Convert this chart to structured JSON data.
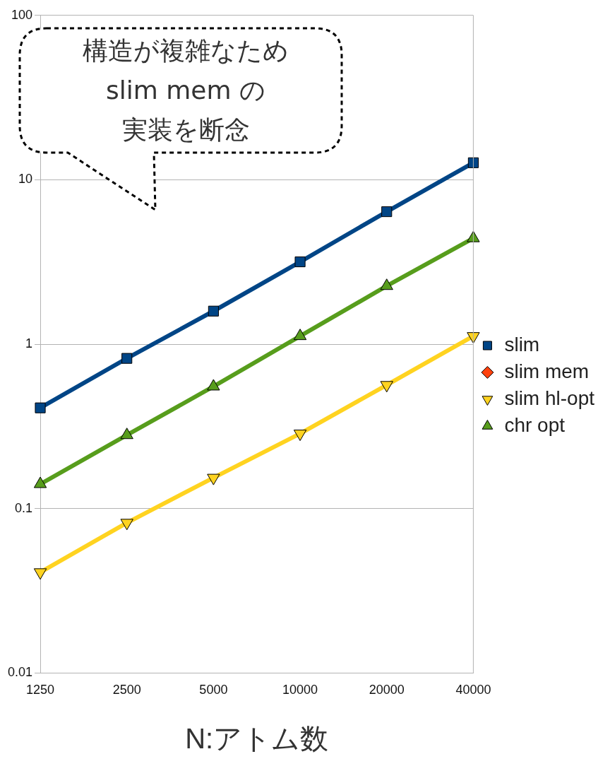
{
  "chart_data": {
    "type": "line",
    "xlabel": "N:アトム数",
    "categories": [
      "1250",
      "2500",
      "5000",
      "10000",
      "20000",
      "40000"
    ],
    "series": [
      {
        "name": "slim",
        "color": "#004586",
        "marker": "square",
        "values": [
          0.41,
          0.82,
          1.59,
          3.17,
          6.4,
          12.7
        ]
      },
      {
        "name": "slim mem",
        "color": "#ff420e",
        "marker": "diamond",
        "values": [
          null,
          null,
          null,
          null,
          null,
          null
        ]
      },
      {
        "name": "slim hl-opt",
        "color": "#ffd320",
        "marker": "triangle-down",
        "values": [
          0.041,
          0.082,
          0.154,
          0.286,
          0.565,
          1.12
        ]
      },
      {
        "name": "chr opt",
        "color": "#579d1c",
        "marker": "triangle",
        "values": [
          0.141,
          0.28,
          0.553,
          1.12,
          2.26,
          4.41
        ]
      }
    ],
    "log": "y",
    "ylim": [
      0.01,
      100
    ],
    "yticks": [
      0.01,
      0.1,
      1,
      10,
      100
    ],
    "grid": "y",
    "legend": "right",
    "annotations": [
      "構造が複雑なため",
      "slim mem の",
      "実装を断念"
    ]
  }
}
